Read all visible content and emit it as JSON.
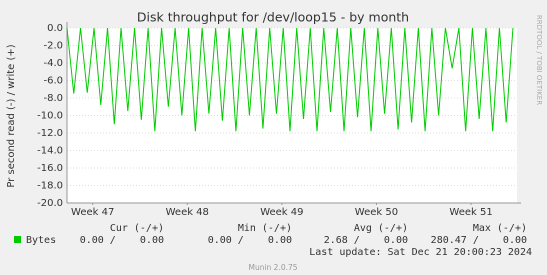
{
  "chart_data": {
    "type": "line",
    "title": "Disk throughput for /dev/loop15 - by month",
    "y_label": "Pr second read (-) / write (+)",
    "side_text": "RRDTOOL / TOBI OETIKER",
    "xlim": [
      0,
      33.3
    ],
    "xticks": [
      {
        "value": 1.9,
        "label": "Week 47"
      },
      {
        "value": 8.9,
        "label": "Week 48"
      },
      {
        "value": 15.9,
        "label": "Week 49"
      },
      {
        "value": 22.9,
        "label": "Week 50"
      },
      {
        "value": 29.9,
        "label": "Week 51"
      }
    ],
    "ylim": [
      -20,
      0
    ],
    "yticks": [
      {
        "value": 0,
        "label": "0.0"
      },
      {
        "value": -2,
        "label": "-2.0"
      },
      {
        "value": -4,
        "label": "-4.0"
      },
      {
        "value": -6,
        "label": "-6.0"
      },
      {
        "value": -8,
        "label": "-8.0"
      },
      {
        "value": -10,
        "label": "-10.0"
      },
      {
        "value": -12,
        "label": "-12.0"
      },
      {
        "value": -14,
        "label": "-14.0"
      },
      {
        "value": -16,
        "label": "-16.0"
      },
      {
        "value": -18,
        "label": "-18.0"
      },
      {
        "value": -20,
        "label": "-20.0"
      }
    ],
    "grid": true,
    "x": [
      0,
      0.5,
      1,
      1.5,
      2,
      2.5,
      3,
      3.5,
      4,
      4.5,
      5,
      5.5,
      6,
      6.5,
      7,
      7.5,
      8,
      8.5,
      9,
      9.5,
      10,
      10.5,
      11,
      11.5,
      12,
      12.5,
      13,
      13.5,
      14,
      14.5,
      15,
      15.5,
      16,
      16.5,
      17,
      17.5,
      18,
      18.5,
      19,
      19.5,
      20,
      20.5,
      21,
      21.5,
      22,
      22.5,
      23,
      23.5,
      24,
      24.5,
      25,
      25.5,
      26,
      26.5,
      27,
      27.5,
      28,
      28.5,
      29,
      29.5,
      30,
      30.5,
      31,
      31.5,
      32,
      32.5,
      33
    ],
    "series": [
      {
        "name": "Bytes",
        "color": "#00cc00",
        "values": [
          0,
          -7.5,
          0,
          -7.4,
          0,
          -8.8,
          0,
          -11,
          0,
          -9.5,
          0,
          -10.5,
          0,
          -11.8,
          0,
          -9,
          0,
          -10,
          0,
          -11.8,
          0,
          -9.8,
          0,
          -10.6,
          0,
          -11.8,
          0,
          -10,
          0,
          -11.5,
          0,
          -9.8,
          0,
          -11.8,
          0,
          -10.4,
          0,
          -11.8,
          0,
          -9.6,
          0,
          -11.8,
          0,
          -10.2,
          0,
          -11.8,
          0,
          -9.8,
          0,
          -11.6,
          0,
          -10.8,
          0,
          -11.8,
          0,
          -10,
          0,
          -4.6,
          0,
          -11.8,
          0,
          -10.4,
          0,
          -11.8,
          0,
          -10.8,
          0
        ]
      }
    ],
    "legend_table": {
      "headers": [
        "Cur (-/+)",
        "Min (-/+)",
        "Avg (-/+)",
        "Max (-/+)"
      ],
      "cells": [
        "0.00 /    0.00",
        "0.00 /    0.00",
        "2.68 /    0.00",
        "280.47 /    0.00"
      ]
    },
    "last_update": "Last update: Sat Dec 21 20:00:23 2024",
    "footer": "Munin 2.0.75"
  }
}
